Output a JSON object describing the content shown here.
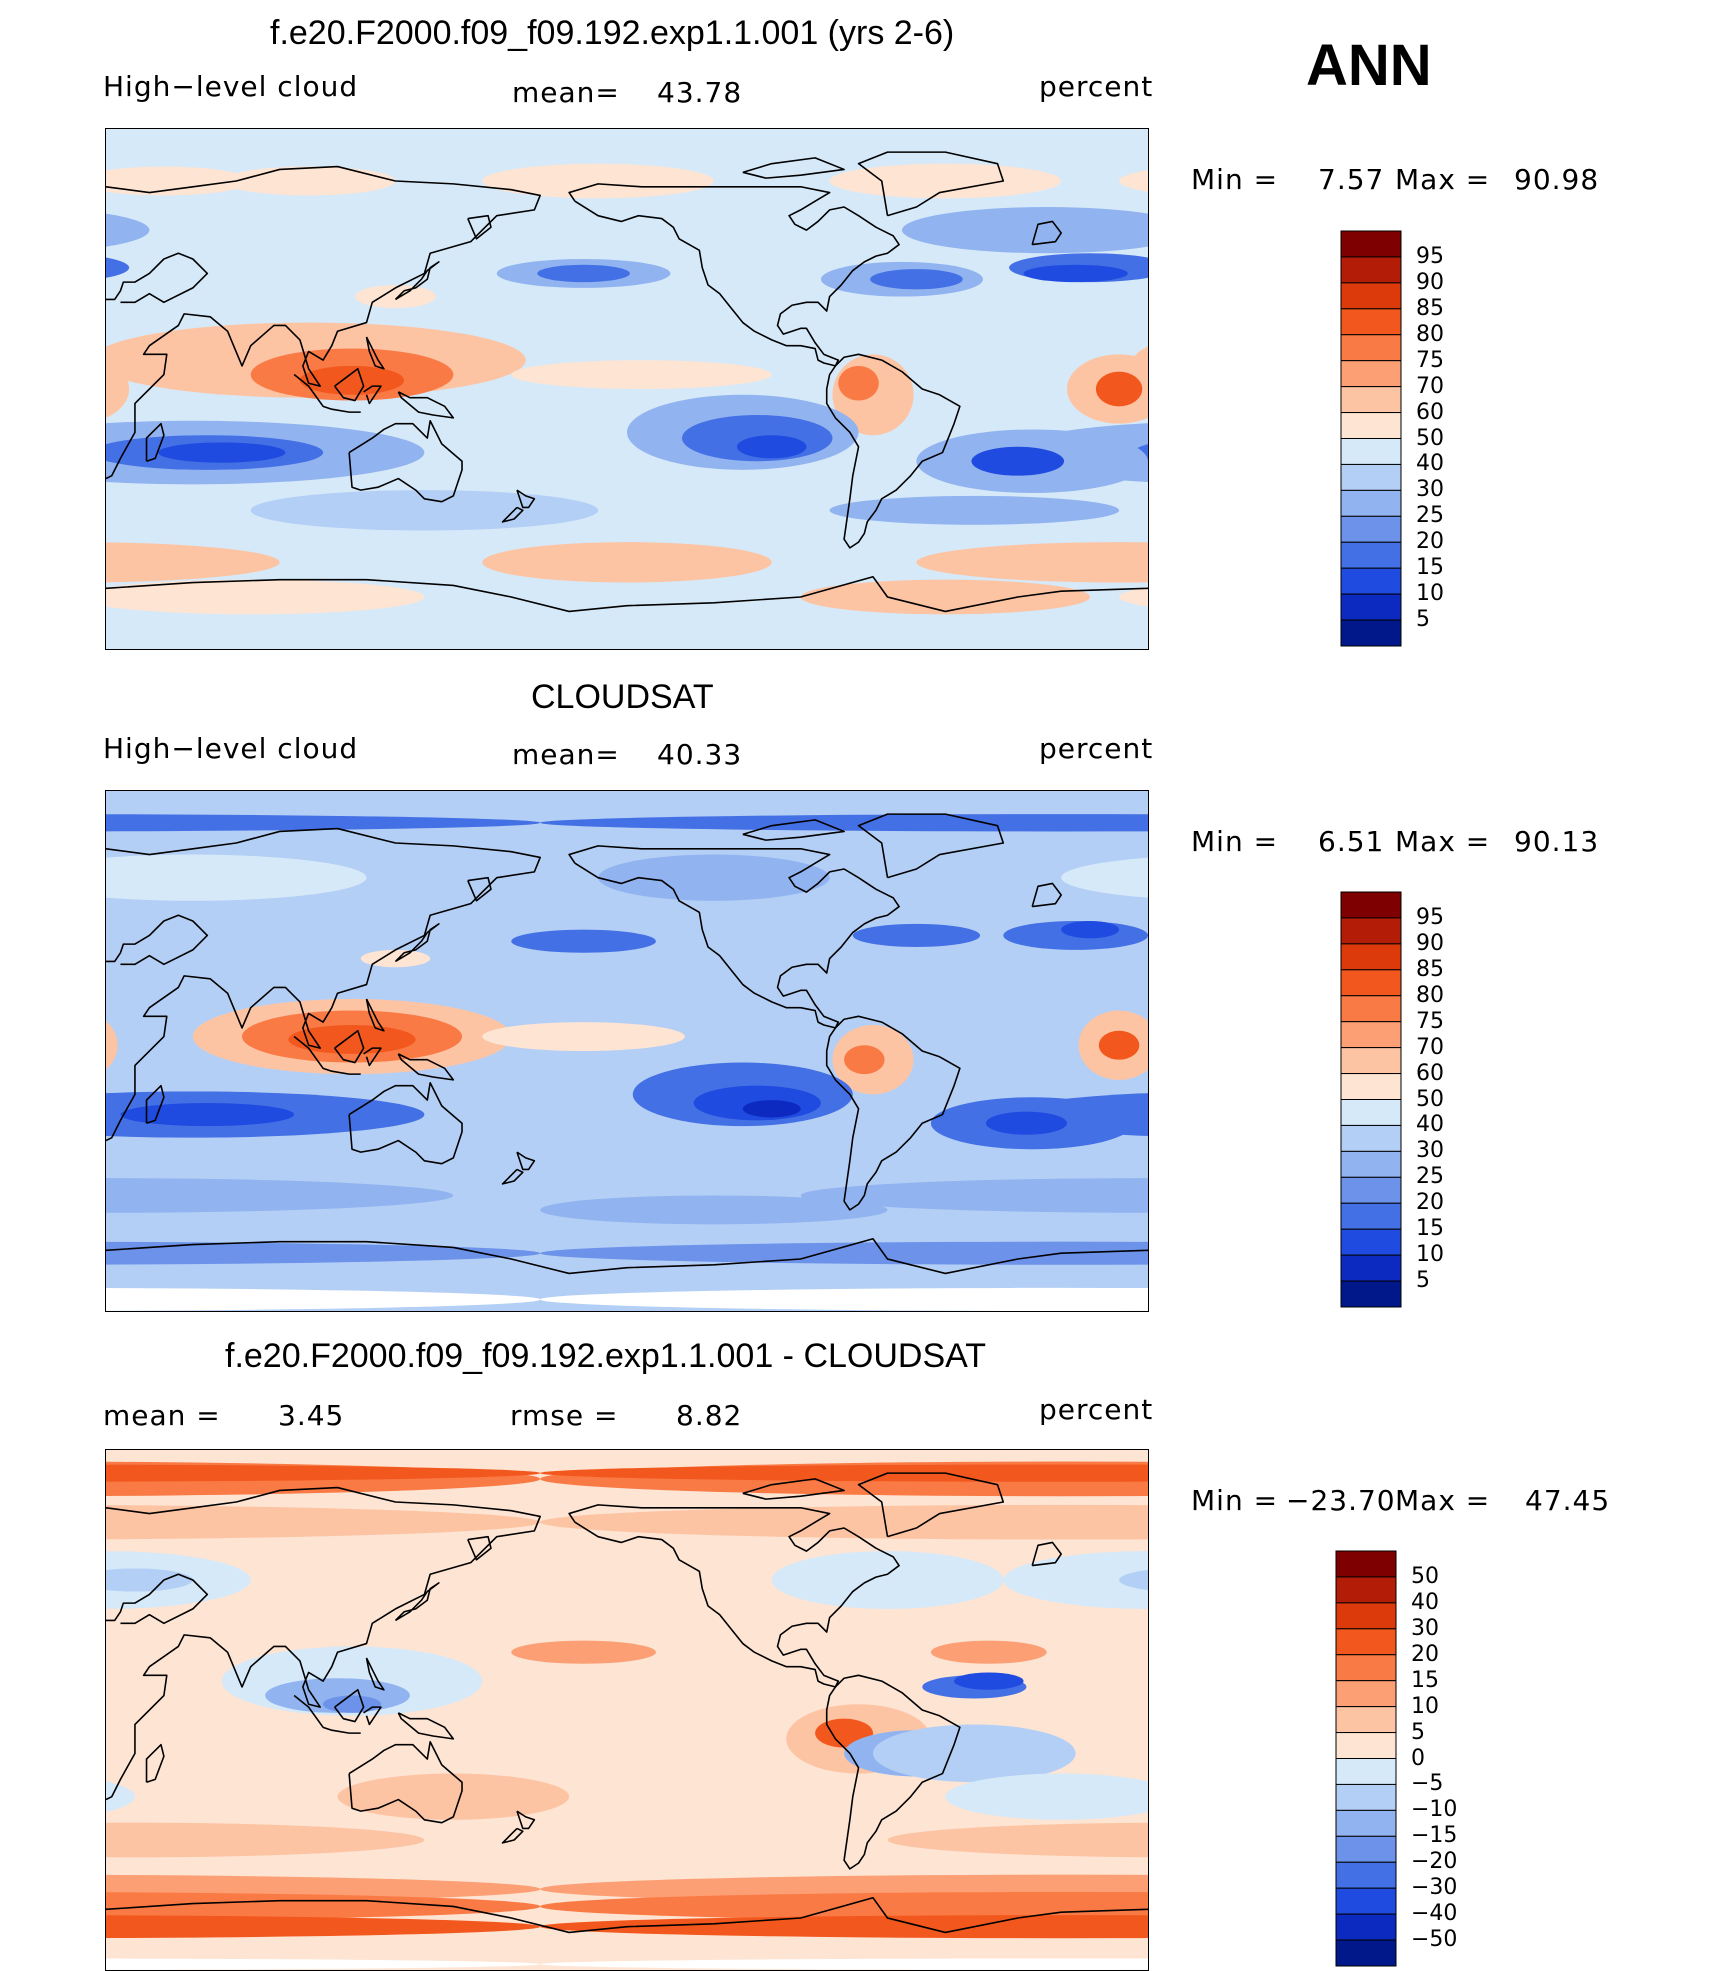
{
  "figure_label": "ANN",
  "panels": [
    {
      "title": "f.e20.F2000.f09_f09.192.exp1.1.001 (yrs 2-6)",
      "left_label": "High−level cloud",
      "stat1_label": "mean=",
      "stat1_value": "43.78",
      "stat2_label": "",
      "stat2_value": "",
      "units": "percent",
      "min_label": "Min  =",
      "min_value": "7.57",
      "max_label": "Max  =",
      "max_value": "90.98",
      "colorbar": {
        "ticks": [
          "95",
          "90",
          "85",
          "80",
          "75",
          "70",
          "60",
          "50",
          "40",
          "30",
          "25",
          "20",
          "15",
          "10",
          "5"
        ],
        "colors": [
          "#7f0000",
          "#b31c06",
          "#dc3a0b",
          "#f2581d",
          "#fa7a45",
          "#fc9f74",
          "#fdc4a4",
          "#fde4d3",
          "#d6e9f9",
          "#b4cff5",
          "#91b3f0",
          "#6c92ea",
          "#4470e5",
          "#1f4be0",
          "#0d2ac0",
          "#001889"
        ]
      },
      "field": {
        "background": "#d6e9f9",
        "blobs": [
          {
            "c": "#fde4d3",
            "lon": -160,
            "lat": 72,
            "rx": 40,
            "ry": 6
          },
          {
            "c": "#fde4d3",
            "lon": -40,
            "lat": 72,
            "rx": 40,
            "ry": 6
          },
          {
            "c": "#fde4d3",
            "lon": 50,
            "lat": 72,
            "rx": 30,
            "ry": 5
          },
          {
            "c": "#fde4d3",
            "lon": 100,
            "lat": 72,
            "rx": 30,
            "ry": 5
          },
          {
            "c": "#91b3f0",
            "lon": -5,
            "lat": 55,
            "rx": 50,
            "ry": 8
          },
          {
            "c": "#4470e5",
            "lon": 10,
            "lat": 42,
            "rx": 28,
            "ry": 5
          },
          {
            "c": "#1f4be0",
            "lon": 5,
            "lat": 40,
            "rx": 18,
            "ry": 3
          },
          {
            "c": "#91b3f0",
            "lon": -165,
            "lat": 40,
            "rx": 30,
            "ry": 5
          },
          {
            "c": "#4470e5",
            "lon": -165,
            "lat": 40,
            "rx": 16,
            "ry": 3
          },
          {
            "c": "#91b3f0",
            "lon": -55,
            "lat": 38,
            "rx": 28,
            "ry": 6
          },
          {
            "c": "#4470e5",
            "lon": -50,
            "lat": 38,
            "rx": 16,
            "ry": 3.5
          },
          {
            "c": "#fde4d3",
            "lon": 130,
            "lat": 32,
            "rx": 14,
            "ry": 4
          },
          {
            "c": "#fdc4a4",
            "lon": 100,
            "lat": 10,
            "rx": 75,
            "ry": 13
          },
          {
            "c": "#fa7a45",
            "lon": 115,
            "lat": 5,
            "rx": 35,
            "ry": 9
          },
          {
            "c": "#f2581d",
            "lon": 115,
            "lat": 3,
            "rx": 18,
            "ry": 5
          },
          {
            "c": "#fdc4a4",
            "lon": 20,
            "lat": 0,
            "rx": 18,
            "ry": 12
          },
          {
            "c": "#f2581d",
            "lon": 20,
            "lat": 0,
            "rx": 8,
            "ry": 6
          },
          {
            "c": "#fdc4a4",
            "lon": -65,
            "lat": -2,
            "rx": 14,
            "ry": 14
          },
          {
            "c": "#fa7a45",
            "lon": -70,
            "lat": 2,
            "rx": 7,
            "ry": 6
          },
          {
            "c": "#fde4d3",
            "lon": -145,
            "lat": 5,
            "rx": 45,
            "ry": 5
          },
          {
            "c": "#91b3f0",
            "lon": -110,
            "lat": -15,
            "rx": 40,
            "ry": 13
          },
          {
            "c": "#4470e5",
            "lon": -105,
            "lat": -17,
            "rx": 26,
            "ry": 8
          },
          {
            "c": "#1f4be0",
            "lon": -100,
            "lat": -20,
            "rx": 12,
            "ry": 4
          },
          {
            "c": "#91b3f0",
            "lon": 60,
            "lat": -22,
            "rx": 80,
            "ry": 11
          },
          {
            "c": "#4470e5",
            "lon": 65,
            "lat": -22,
            "rx": 40,
            "ry": 6
          },
          {
            "c": "#1f4be0",
            "lon": 70,
            "lat": -22,
            "rx": 22,
            "ry": 3.5
          },
          {
            "c": "#91b3f0",
            "lon": -10,
            "lat": -25,
            "rx": 40,
            "ry": 11
          },
          {
            "c": "#1f4be0",
            "lon": -15,
            "lat": -25,
            "rx": 16,
            "ry": 5
          },
          {
            "c": "#91b3f0",
            "lon": -30,
            "lat": -42,
            "rx": 50,
            "ry": 5
          },
          {
            "c": "#b4cff5",
            "lon": 140,
            "lat": -42,
            "rx": 60,
            "ry": 7
          },
          {
            "c": "#fdc4a4",
            "lon": -150,
            "lat": -60,
            "rx": 50,
            "ry": 7
          },
          {
            "c": "#fdc4a4",
            "lon": 20,
            "lat": -60,
            "rx": 70,
            "ry": 7
          },
          {
            "c": "#fdc4a4",
            "lon": -40,
            "lat": -72,
            "rx": 50,
            "ry": 6
          },
          {
            "c": "#fde4d3",
            "lon": 80,
            "lat": -72,
            "rx": 60,
            "ry": 6
          }
        ]
      }
    },
    {
      "title": "CLOUDSAT",
      "left_label": "High−level cloud",
      "stat1_label": "mean=",
      "stat1_value": "40.33",
      "stat2_label": "",
      "stat2_value": "",
      "units": "percent",
      "min_label": "Min  =",
      "min_value": "6.51",
      "max_label": "Max  =",
      "max_value": "90.13",
      "colorbar": {
        "ticks": [
          "95",
          "90",
          "85",
          "80",
          "75",
          "70",
          "60",
          "50",
          "40",
          "30",
          "25",
          "20",
          "15",
          "10",
          "5"
        ],
        "colors": [
          "#7f0000",
          "#b31c06",
          "#dc3a0b",
          "#f2581d",
          "#fa7a45",
          "#fc9f74",
          "#fdc4a4",
          "#fde4d3",
          "#d6e9f9",
          "#b4cff5",
          "#91b3f0",
          "#6c92ea",
          "#4470e5",
          "#1f4be0",
          "#0d2ac0",
          "#001889"
        ]
      },
      "field": {
        "background": "#b4cff5",
        "blobs": [
          {
            "c": "#4470e5",
            "lon": 0,
            "lat": 79,
            "rx": 180,
            "ry": 3
          },
          {
            "c": "#91b3f0",
            "lon": -120,
            "lat": 60,
            "rx": 40,
            "ry": 8
          },
          {
            "c": "#d6e9f9",
            "lon": 60,
            "lat": 60,
            "rx": 60,
            "ry": 8
          },
          {
            "c": "#4470e5",
            "lon": 5,
            "lat": 40,
            "rx": 25,
            "ry": 5
          },
          {
            "c": "#1f4be0",
            "lon": 10,
            "lat": 42,
            "rx": 10,
            "ry": 3
          },
          {
            "c": "#4470e5",
            "lon": -165,
            "lat": 38,
            "rx": 25,
            "ry": 4
          },
          {
            "c": "#4470e5",
            "lon": -50,
            "lat": 40,
            "rx": 22,
            "ry": 4
          },
          {
            "c": "#fde4d3",
            "lon": 130,
            "lat": 32,
            "rx": 12,
            "ry": 3
          },
          {
            "c": "#fdc4a4",
            "lon": 115,
            "lat": 5,
            "rx": 55,
            "ry": 13
          },
          {
            "c": "#fa7a45",
            "lon": 115,
            "lat": 5,
            "rx": 38,
            "ry": 9
          },
          {
            "c": "#f2581d",
            "lon": 115,
            "lat": 4,
            "rx": 22,
            "ry": 5
          },
          {
            "c": "#fde4d3",
            "lon": -165,
            "lat": 5,
            "rx": 35,
            "ry": 5
          },
          {
            "c": "#fdc4a4",
            "lon": 20,
            "lat": 2,
            "rx": 14,
            "ry": 12
          },
          {
            "c": "#f2581d",
            "lon": 20,
            "lat": 2,
            "rx": 7,
            "ry": 5
          },
          {
            "c": "#fdc4a4",
            "lon": -65,
            "lat": -3,
            "rx": 14,
            "ry": 12
          },
          {
            "c": "#fa7a45",
            "lon": -68,
            "lat": -3,
            "rx": 7,
            "ry": 5
          },
          {
            "c": "#4470e5",
            "lon": -110,
            "lat": -15,
            "rx": 38,
            "ry": 11
          },
          {
            "c": "#1f4be0",
            "lon": -105,
            "lat": -18,
            "rx": 22,
            "ry": 6
          },
          {
            "c": "#0d2ac0",
            "lon": -100,
            "lat": -20,
            "rx": 10,
            "ry": 3
          },
          {
            "c": "#4470e5",
            "lon": 60,
            "lat": -22,
            "rx": 80,
            "ry": 8
          },
          {
            "c": "#1f4be0",
            "lon": 65,
            "lat": -22,
            "rx": 30,
            "ry": 4
          },
          {
            "c": "#4470e5",
            "lon": -10,
            "lat": -25,
            "rx": 35,
            "ry": 9
          },
          {
            "c": "#1f4be0",
            "lon": -12,
            "lat": -25,
            "rx": 14,
            "ry": 4
          },
          {
            "c": "#91b3f0",
            "lon": 30,
            "lat": -50,
            "rx": 120,
            "ry": 6
          },
          {
            "c": "#91b3f0",
            "lon": -120,
            "lat": -55,
            "rx": 60,
            "ry": 5
          },
          {
            "c": "#6c92ea",
            "lon": 0,
            "lat": -70,
            "rx": 180,
            "ry": 4
          },
          {
            "c": "#ffffff",
            "lon": 0,
            "lat": -86,
            "rx": 180,
            "ry": 4
          }
        ]
      }
    },
    {
      "title": "f.e20.F2000.f09_f09.192.exp1.1.001 - CLOUDSAT",
      "left_label": "mean =",
      "stat1_label": "",
      "stat1_value": "3.45",
      "stat2_label": "rmse =",
      "stat2_value": "8.82",
      "units": "percent",
      "min_label": "Min  =",
      "min_value": "−23.70",
      "max_label": "Max  =",
      "max_value": "47.45",
      "colorbar": {
        "ticks": [
          "50",
          "40",
          "30",
          "20",
          "15",
          "10",
          "5",
          "0",
          "−5",
          "−10",
          "−15",
          "−20",
          "−30",
          "−40",
          "−50"
        ],
        "colors": [
          "#7f0000",
          "#b31c06",
          "#dc3a0b",
          "#f2581d",
          "#fa7a45",
          "#fc9f74",
          "#fdc4a4",
          "#fde4d3",
          "#d6e9f9",
          "#b4cff5",
          "#91b3f0",
          "#6c92ea",
          "#4470e5",
          "#1f4be0",
          "#0d2ac0",
          "#001889"
        ]
      },
      "field": {
        "background": "#fde4d3",
        "blobs": [
          {
            "c": "#fa7a45",
            "lon": 0,
            "lat": 80,
            "rx": 180,
            "ry": 6
          },
          {
            "c": "#f2581d",
            "lon": 0,
            "lat": 82,
            "rx": 180,
            "ry": 3
          },
          {
            "c": "#fdc4a4",
            "lon": 0,
            "lat": 65,
            "rx": 180,
            "ry": 6
          },
          {
            "c": "#d6e9f9",
            "lon": 30,
            "lat": 45,
            "rx": 50,
            "ry": 10
          },
          {
            "c": "#b4cff5",
            "lon": 40,
            "lat": 45,
            "rx": 20,
            "ry": 4
          },
          {
            "c": "#d6e9f9",
            "lon": -60,
            "lat": 45,
            "rx": 40,
            "ry": 10
          },
          {
            "c": "#d6e9f9",
            "lon": 115,
            "lat": 10,
            "rx": 45,
            "ry": 12
          },
          {
            "c": "#91b3f0",
            "lon": 110,
            "lat": 5,
            "rx": 25,
            "ry": 6
          },
          {
            "c": "#6c92ea",
            "lon": 115,
            "lat": 2,
            "rx": 10,
            "ry": 3
          },
          {
            "c": "#fc9f74",
            "lon": -165,
            "lat": 20,
            "rx": 25,
            "ry": 4
          },
          {
            "c": "#fc9f74",
            "lon": -25,
            "lat": 20,
            "rx": 20,
            "ry": 4
          },
          {
            "c": "#fdc4a4",
            "lon": -70,
            "lat": -10,
            "rx": 25,
            "ry": 12
          },
          {
            "c": "#f2581d",
            "lon": -75,
            "lat": -8,
            "rx": 10,
            "ry": 5
          },
          {
            "c": "#91b3f0",
            "lon": -50,
            "lat": -15,
            "rx": 25,
            "ry": 8
          },
          {
            "c": "#4470e5",
            "lon": -30,
            "lat": 8,
            "rx": 18,
            "ry": 4
          },
          {
            "c": "#b4cff5",
            "lon": -30,
            "lat": -15,
            "rx": 35,
            "ry": 10
          },
          {
            "c": "#1f4be0",
            "lon": -25,
            "lat": 10,
            "rx": 12,
            "ry": 3
          },
          {
            "c": "#d6e9f9",
            "lon": 0,
            "lat": -30,
            "rx": 40,
            "ry": 8
          },
          {
            "c": "#fdc4a4",
            "lon": 150,
            "lat": -30,
            "rx": 40,
            "ry": 8
          },
          {
            "c": "#fdc4a4",
            "lon": 40,
            "lat": -45,
            "rx": 100,
            "ry": 6
          },
          {
            "c": "#fc9f74",
            "lon": 0,
            "lat": -62,
            "rx": 180,
            "ry": 5
          },
          {
            "c": "#fa7a45",
            "lon": 0,
            "lat": -68,
            "rx": 180,
            "ry": 5
          },
          {
            "c": "#f2581d",
            "lon": 0,
            "lat": -75,
            "rx": 180,
            "ry": 4
          },
          {
            "c": "#ffffff",
            "lon": 0,
            "lat": -88,
            "rx": 180,
            "ry": 2
          }
        ]
      }
    }
  ]
}
